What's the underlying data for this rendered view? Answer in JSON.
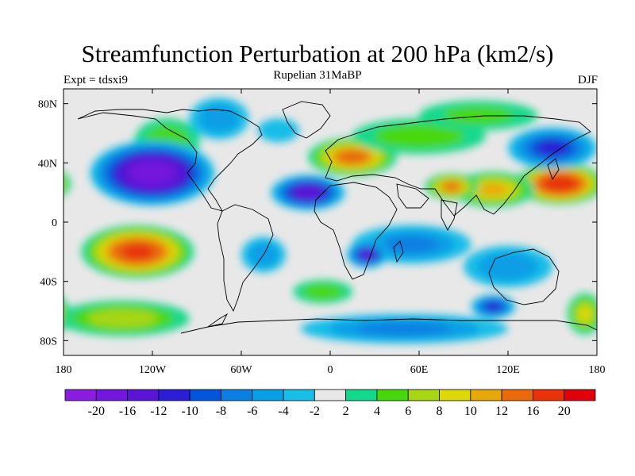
{
  "title": "Streamfunction Perturbation at 200 hPa (km2/s)",
  "experiment": "Expt = tdsxi9",
  "period": "Rupelian  31MaBP",
  "season": "DJF",
  "map": {
    "lat_ticks": [
      {
        "value": 80,
        "label": "80N"
      },
      {
        "value": 40,
        "label": "40N"
      },
      {
        "value": 0,
        "label": "0"
      },
      {
        "value": -40,
        "label": "40S"
      },
      {
        "value": -80,
        "label": "80S"
      }
    ],
    "lon_ticks": [
      {
        "value": -180,
        "label": "180"
      },
      {
        "value": -120,
        "label": "120W"
      },
      {
        "value": -60,
        "label": "60W"
      },
      {
        "value": 0,
        "label": "0"
      },
      {
        "value": 60,
        "label": "60E"
      },
      {
        "value": 120,
        "label": "120E"
      },
      {
        "value": 180,
        "label": "180"
      }
    ],
    "lon_range": [
      -180,
      180
    ],
    "lat_range": [
      -90,
      90
    ],
    "background_color": "#e8e8e8",
    "anomalies": [
      {
        "name": "north-pacific-high-npac-west",
        "lon": 155,
        "lat": 26,
        "rx": 30,
        "ry": 14,
        "value": 19
      },
      {
        "name": "east-asia-ridge",
        "lon": 110,
        "lat": 22,
        "rx": 28,
        "ry": 12,
        "value": 10
      },
      {
        "name": "arabian-ridge",
        "lon": 82,
        "lat": 24,
        "rx": 18,
        "ry": 9,
        "value": 12
      },
      {
        "name": "europe-ridge",
        "lon": 15,
        "lat": 44,
        "rx": 30,
        "ry": 13,
        "value": 13
      },
      {
        "name": "eurasia-north-band",
        "lon": 60,
        "lat": 58,
        "rx": 45,
        "ry": 12,
        "value": 5
      },
      {
        "name": "siberia-north-band",
        "lon": 100,
        "lat": 72,
        "rx": 40,
        "ry": 10,
        "value": 4
      },
      {
        "name": "south-pacific-ridge",
        "lon": -130,
        "lat": -20,
        "rx": 38,
        "ry": 18,
        "value": 16
      },
      {
        "name": "southern-ocean-band-west",
        "lon": -140,
        "lat": -65,
        "rx": 45,
        "ry": 12,
        "value": 7
      },
      {
        "name": "southern-ocean-band-east",
        "lon": 172,
        "lat": -62,
        "rx": 12,
        "ry": 14,
        "value": 8
      },
      {
        "name": "south-atlantic-ridge",
        "lon": -5,
        "lat": -47,
        "rx": 20,
        "ry": 8,
        "value": 5
      },
      {
        "name": "north-america-ridge",
        "lon": -110,
        "lat": 55,
        "rx": 22,
        "ry": 15,
        "value": 5
      },
      {
        "name": "west-pacific-trough",
        "lon": -120,
        "lat": 33,
        "rx": 42,
        "ry": 22,
        "value": -18
      },
      {
        "name": "north-atlantic-trough",
        "lon": -15,
        "lat": 20,
        "rx": 25,
        "ry": 12,
        "value": -14
      },
      {
        "name": "hudson-trough",
        "lon": -75,
        "lat": 70,
        "rx": 20,
        "ry": 14,
        "value": -5
      },
      {
        "name": "atlantic-trough-north",
        "lon": -35,
        "lat": 62,
        "rx": 14,
        "ry": 8,
        "value": -3
      },
      {
        "name": "siberia-trough",
        "lon": 150,
        "lat": 50,
        "rx": 30,
        "ry": 14,
        "value": -10
      },
      {
        "name": "indian-ocean-trough",
        "lon": 55,
        "lat": -15,
        "rx": 40,
        "ry": 13,
        "value": -6
      },
      {
        "name": "africa-south-trough",
        "lon": 25,
        "lat": -22,
        "rx": 14,
        "ry": 9,
        "value": -12
      },
      {
        "name": "australia-trough",
        "lon": 120,
        "lat": -30,
        "rx": 30,
        "ry": 14,
        "value": -5
      },
      {
        "name": "tasman-trough",
        "lon": 110,
        "lat": -57,
        "rx": 15,
        "ry": 8,
        "value": -10
      },
      {
        "name": "antarctic-trough",
        "lon": 50,
        "lat": -72,
        "rx": 70,
        "ry": 10,
        "value": -6
      },
      {
        "name": "south-america-trough",
        "lon": -45,
        "lat": -22,
        "rx": 15,
        "ry": 12,
        "value": -5
      }
    ]
  },
  "colorbar": {
    "colors": [
      "#8c1de0",
      "#7516dc",
      "#5a14d4",
      "#2b1ed4",
      "#0055d8",
      "#0a80e2",
      "#0a9ee6",
      "#18bde8",
      "#e8e8e8",
      "#14d98c",
      "#48d70e",
      "#a6d614",
      "#dcd80a",
      "#e8a80a",
      "#e86a0a",
      "#e8320a",
      "#e0000a"
    ],
    "labels": [
      "-20",
      "-16",
      "-12",
      "-10",
      "-8",
      "-6",
      "-4",
      "-2",
      "2",
      "4",
      "6",
      "8",
      "10",
      "12",
      "16",
      "20"
    ],
    "boundaries": [
      -20,
      -16,
      -12,
      -10,
      -8,
      -6,
      -4,
      -2,
      2,
      4,
      6,
      8,
      10,
      12,
      16,
      20
    ]
  }
}
